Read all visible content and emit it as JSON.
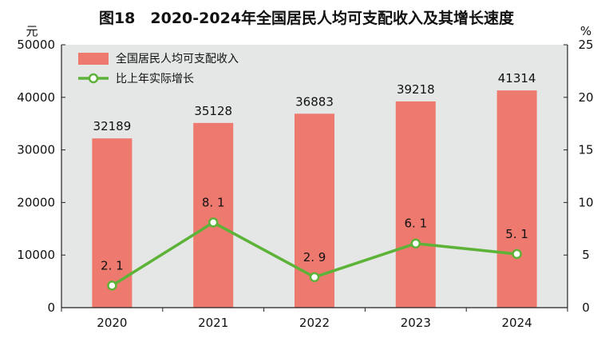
{
  "chart_data": {
    "type": "bar",
    "title": "图18　2020-2024年全国居民人均可支配收入及其增长速度",
    "left_unit": "元",
    "right_unit": "%",
    "categories": [
      "2020",
      "2021",
      "2022",
      "2023",
      "2024"
    ],
    "series": [
      {
        "name": "全国居民人均可支配收入",
        "type": "bar",
        "axis": "left",
        "values": [
          32189,
          35128,
          36883,
          39218,
          41314
        ],
        "labels": [
          "32189",
          "35128",
          "36883",
          "39218",
          "41314"
        ]
      },
      {
        "name": "比上年实际增长",
        "type": "line",
        "axis": "right",
        "values": [
          2.1,
          8.1,
          2.9,
          6.1,
          5.1
        ],
        "labels": [
          "2. 1",
          "8. 1",
          "2. 9",
          "6. 1",
          "5. 1"
        ]
      }
    ],
    "left_axis": {
      "min": 0,
      "max": 50000,
      "ticks": [
        0,
        10000,
        20000,
        30000,
        40000,
        50000
      ],
      "tick_labels": [
        "0",
        "10000",
        "20000",
        "30000",
        "40000",
        "50000"
      ]
    },
    "right_axis": {
      "min": 0,
      "max": 25,
      "ticks": [
        0,
        5,
        10,
        15,
        20,
        25
      ],
      "tick_labels": [
        "0",
        "5",
        "10",
        "15",
        "20",
        "25"
      ]
    },
    "legend_position": "top-left",
    "grid": false,
    "colors": {
      "bar": "#ee7a6f",
      "line": "#5cb338",
      "plot_background": "#e5e6e6",
      "title": "#111111"
    }
  }
}
